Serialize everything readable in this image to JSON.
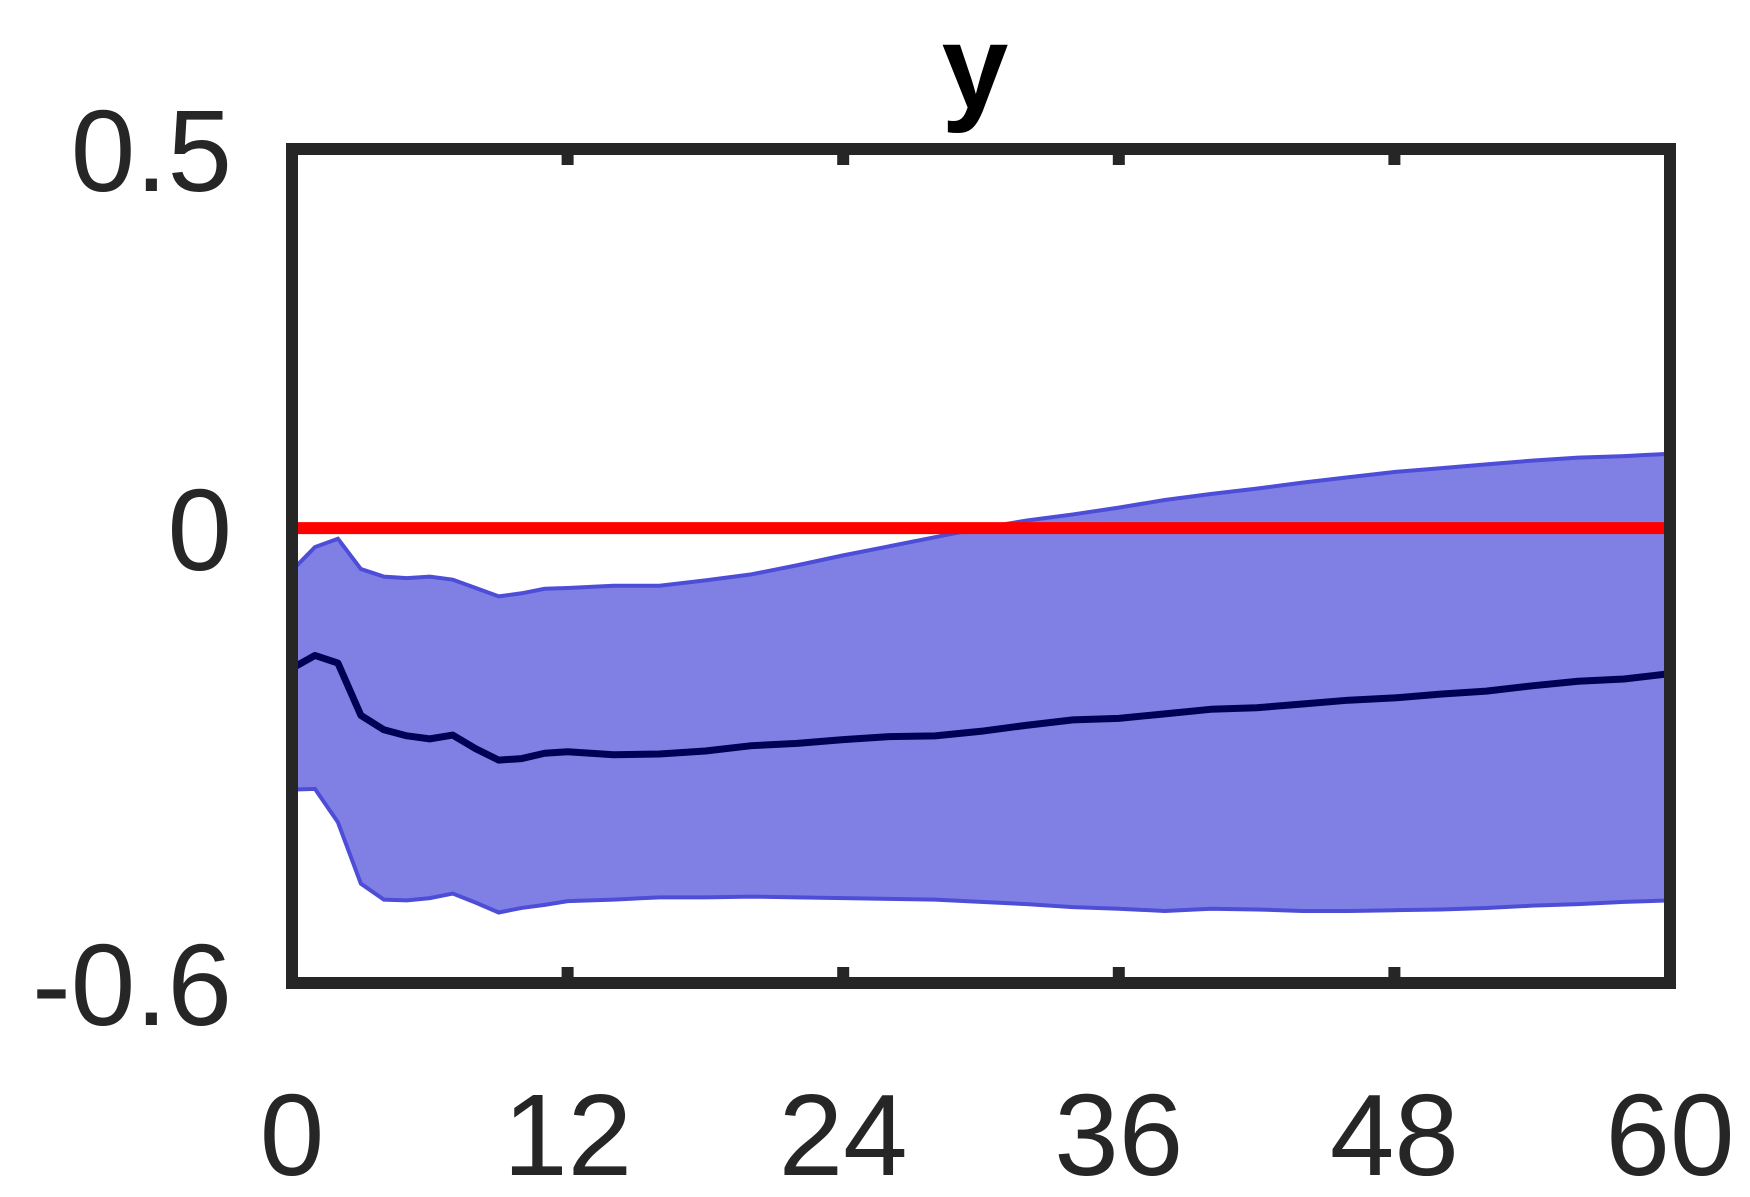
{
  "chart_data": {
    "type": "line",
    "title": "y",
    "xlabel": "",
    "ylabel": "",
    "xlim": [
      0,
      60
    ],
    "ylim": [
      -0.6,
      0.5
    ],
    "x_ticks": [
      0,
      12,
      24,
      36,
      48,
      60
    ],
    "x_tick_labels": [
      "0",
      "12",
      "24",
      "36",
      "48",
      "60"
    ],
    "y_ticks": [
      -0.6,
      0,
      0.5
    ],
    "y_tick_labels": [
      "-0.6",
      "0",
      "0.5"
    ],
    "grid": false,
    "legend": "none",
    "colors": {
      "band_fill": "#8080e4",
      "band_edge": "#4d4dd8",
      "median_line": "#000055",
      "zero_line": "#ff0000",
      "axes": "#262626"
    },
    "x": [
      0,
      1,
      2,
      3,
      4,
      5,
      6,
      7,
      8,
      9,
      10,
      11,
      12,
      14,
      16,
      18,
      20,
      22,
      24,
      26,
      28,
      30,
      32,
      34,
      36,
      38,
      40,
      42,
      44,
      46,
      48,
      50,
      52,
      54,
      56,
      58,
      60
    ],
    "series": [
      {
        "role": "band",
        "upper": [
          -0.056,
          -0.025,
          -0.014,
          -0.054,
          -0.064,
          -0.066,
          -0.064,
          -0.068,
          -0.079,
          -0.09,
          -0.086,
          -0.08,
          -0.079,
          -0.076,
          -0.076,
          -0.069,
          -0.061,
          -0.049,
          -0.036,
          -0.024,
          -0.012,
          0.0,
          0.01,
          0.018,
          0.027,
          0.037,
          0.045,
          0.052,
          0.06,
          0.067,
          0.074,
          0.079,
          0.084,
          0.089,
          0.093,
          0.095,
          0.098
        ],
        "lower": [
          -0.345,
          -0.344,
          -0.388,
          -0.469,
          -0.49,
          -0.491,
          -0.488,
          -0.482,
          -0.494,
          -0.507,
          -0.501,
          -0.497,
          -0.492,
          -0.49,
          -0.487,
          -0.487,
          -0.486,
          -0.487,
          -0.488,
          -0.489,
          -0.49,
          -0.493,
          -0.496,
          -0.5,
          -0.502,
          -0.505,
          -0.502,
          -0.503,
          -0.505,
          -0.505,
          -0.504,
          -0.503,
          -0.501,
          -0.498,
          -0.496,
          -0.493,
          -0.491
        ]
      },
      {
        "role": "median",
        "values": [
          -0.185,
          -0.168,
          -0.178,
          -0.247,
          -0.266,
          -0.274,
          -0.278,
          -0.273,
          -0.291,
          -0.306,
          -0.304,
          -0.297,
          -0.295,
          -0.299,
          -0.298,
          -0.294,
          -0.287,
          -0.284,
          -0.279,
          -0.275,
          -0.274,
          -0.268,
          -0.26,
          -0.253,
          -0.251,
          -0.245,
          -0.239,
          -0.237,
          -0.232,
          -0.227,
          -0.224,
          -0.219,
          -0.215,
          -0.208,
          -0.202,
          -0.199,
          -0.192
        ]
      },
      {
        "role": "reference",
        "y": 0
      }
    ]
  }
}
